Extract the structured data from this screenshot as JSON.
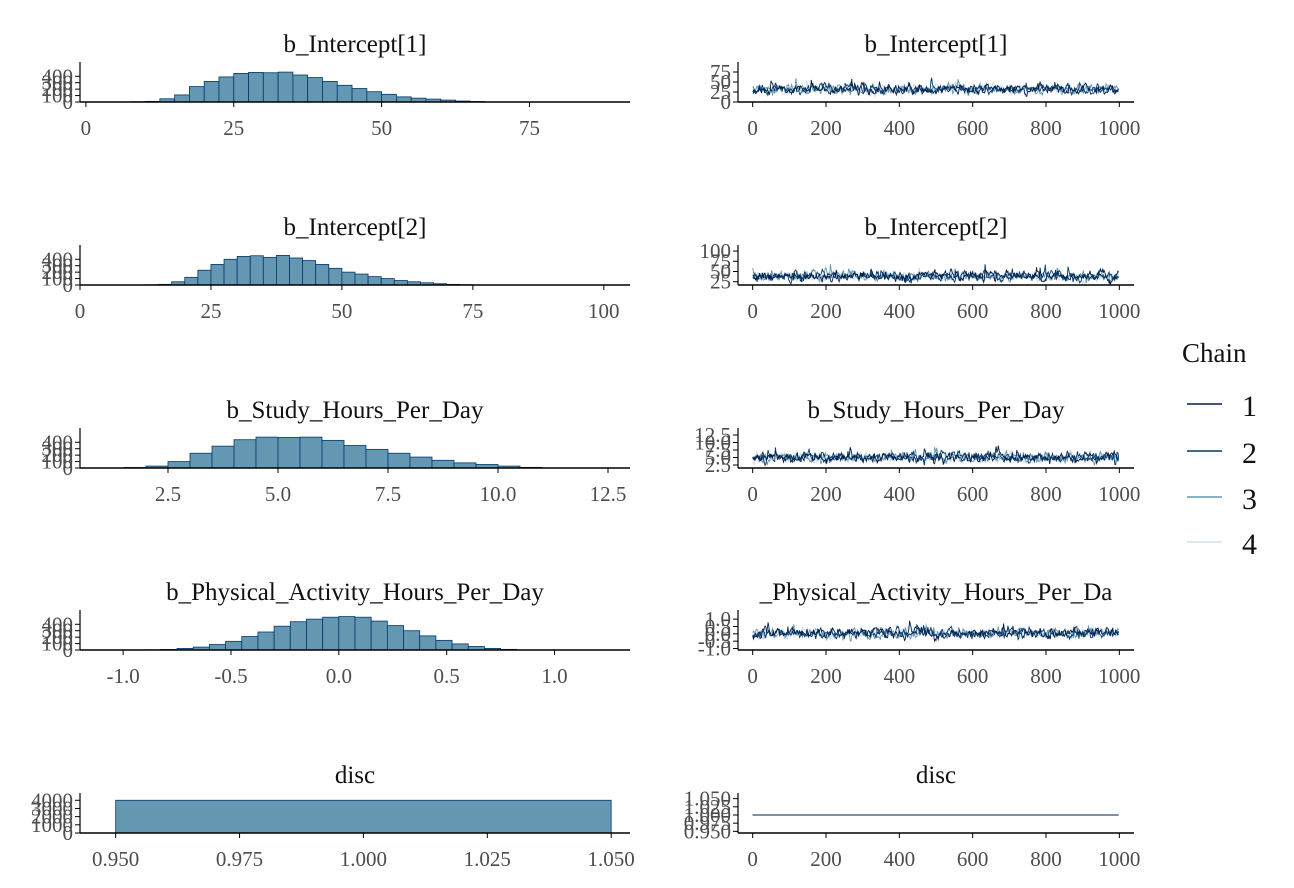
{
  "colors": {
    "hist_fill": "#6497b1",
    "hist_stroke": "#03396c",
    "chain_1": "#011f4b",
    "chain_2": "#03396c",
    "chain_3": "#6497b1",
    "chain_4": "#d1e1ec",
    "axis": "#000000"
  },
  "legend": {
    "title": "Chain",
    "items": [
      {
        "label": "1",
        "color": "#011f4b"
      },
      {
        "label": "2",
        "color": "#03396c"
      },
      {
        "label": "3",
        "color": "#6497b1"
      },
      {
        "label": "4",
        "color": "#d1e1ec"
      }
    ]
  },
  "chart_data": [
    {
      "type": "bar",
      "panel": "histogram",
      "title": "b_Intercept[1]",
      "xlim": [
        -1,
        92
      ],
      "ylim": [
        0,
        560
      ],
      "x_ticks": [
        0,
        25,
        50,
        75
      ],
      "x_tick_labels": [
        "0",
        "25",
        "50",
        "75"
      ],
      "y_ticks": [
        0,
        100,
        200,
        300,
        400
      ],
      "y_tick_labels": [
        "0",
        "100",
        "200",
        "300",
        "400"
      ],
      "bin_width": 2.5,
      "bin_starts": [
        7.5,
        10,
        12.5,
        15,
        17.5,
        20,
        22.5,
        25,
        27.5,
        30,
        32.5,
        35,
        37.5,
        40,
        42.5,
        45,
        47.5,
        50,
        52.5,
        55,
        57.5,
        60,
        62.5,
        65
      ],
      "counts": [
        4,
        10,
        50,
        110,
        240,
        320,
        390,
        445,
        460,
        455,
        465,
        420,
        380,
        320,
        260,
        210,
        160,
        120,
        80,
        60,
        45,
        30,
        15,
        8
      ]
    },
    {
      "type": "line",
      "panel": "trace",
      "title": "b_Intercept[1]",
      "xlim": [
        -40,
        1040
      ],
      "ylim": [
        0,
        90
      ],
      "x_ticks": [
        0,
        200,
        400,
        600,
        800,
        1000
      ],
      "x_tick_labels": [
        "0",
        "200",
        "400",
        "600",
        "800",
        "1000"
      ],
      "y_ticks": [
        0,
        25,
        50,
        75
      ],
      "y_tick_labels": [
        "0",
        "25",
        "50",
        "75"
      ],
      "n_iter": 1000,
      "trace_center": 32,
      "trace_spread": 9,
      "trace_range": [
        8,
        80
      ],
      "series": [
        {
          "name": "1"
        },
        {
          "name": "2"
        },
        {
          "name": "3"
        },
        {
          "name": "4"
        }
      ]
    },
    {
      "type": "bar",
      "panel": "histogram",
      "title": "b_Intercept[2]",
      "xlim": [
        0,
        105
      ],
      "ylim": [
        0,
        560
      ],
      "x_ticks": [
        0,
        25,
        50,
        75,
        100
      ],
      "x_tick_labels": [
        "0",
        "25",
        "50",
        "75",
        "100"
      ],
      "y_ticks": [
        0,
        100,
        200,
        300,
        400
      ],
      "y_tick_labels": [
        "0",
        "100",
        "200",
        "300",
        "400"
      ],
      "bin_width": 2.5,
      "bin_starts": [
        12.5,
        15,
        17.5,
        20,
        22.5,
        25,
        27.5,
        30,
        32.5,
        35,
        37.5,
        40,
        42.5,
        45,
        47.5,
        50,
        52.5,
        55,
        57.5,
        60,
        62.5,
        65,
        67.5,
        70,
        72.5
      ],
      "counts": [
        4,
        10,
        50,
        120,
        230,
        320,
        400,
        445,
        455,
        430,
        460,
        420,
        380,
        320,
        260,
        200,
        170,
        130,
        100,
        70,
        50,
        35,
        20,
        10,
        5
      ]
    },
    {
      "type": "line",
      "panel": "trace",
      "title": "b_Intercept[2]",
      "xlim": [
        -40,
        1040
      ],
      "ylim": [
        17,
        105
      ],
      "x_ticks": [
        0,
        200,
        400,
        600,
        800,
        1000
      ],
      "x_tick_labels": [
        "0",
        "200",
        "400",
        "600",
        "800",
        "1000"
      ],
      "y_ticks": [
        25,
        50,
        75,
        100
      ],
      "y_tick_labels": [
        "25",
        "50",
        "75",
        "100"
      ],
      "n_iter": 1000,
      "trace_center": 38,
      "trace_spread": 9,
      "trace_range": [
        20,
        80
      ],
      "series": [
        {
          "name": "1"
        },
        {
          "name": "2"
        },
        {
          "name": "3"
        },
        {
          "name": "4"
        }
      ]
    },
    {
      "type": "bar",
      "panel": "histogram",
      "title": "b_Study_Hours_Per_Day",
      "xlim": [
        0.5,
        13
      ],
      "ylim": [
        0,
        560
      ],
      "x_ticks": [
        2.5,
        5.0,
        7.5,
        10.0,
        12.5
      ],
      "x_tick_labels": [
        "2.5",
        "5.0",
        "7.5",
        "10.0",
        "12.5"
      ],
      "y_ticks": [
        0,
        100,
        200,
        300,
        400
      ],
      "y_tick_labels": [
        "0",
        "100",
        "200",
        "300",
        "400"
      ],
      "bin_width": 0.5,
      "bin_starts": [
        1.5,
        2.0,
        2.5,
        3.0,
        3.5,
        4.0,
        4.5,
        5.0,
        5.5,
        6.0,
        6.5,
        7.0,
        7.5,
        8.0,
        8.5,
        9.0,
        9.5,
        10.0,
        10.5
      ],
      "counts": [
        8,
        30,
        100,
        230,
        340,
        440,
        480,
        475,
        480,
        430,
        350,
        290,
        230,
        170,
        120,
        80,
        55,
        30,
        10
      ]
    },
    {
      "type": "line",
      "panel": "trace",
      "title": "b_Study_Hours_Per_Day",
      "xlim": [
        -40,
        1040
      ],
      "ylim": [
        1.5,
        13.5
      ],
      "x_ticks": [
        0,
        200,
        400,
        600,
        800,
        1000
      ],
      "x_tick_labels": [
        "0",
        "200",
        "400",
        "600",
        "800",
        "1000"
      ],
      "y_ticks": [
        2.5,
        5.0,
        7.5,
        10.0,
        12.5
      ],
      "y_tick_labels": [
        "2.5",
        "5.0",
        "7.5",
        "10.0",
        "12.5"
      ],
      "n_iter": 1000,
      "trace_center": 5.0,
      "trace_spread": 1.3,
      "trace_range": [
        2.2,
        11.5
      ],
      "series": [
        {
          "name": "1"
        },
        {
          "name": "2"
        },
        {
          "name": "3"
        },
        {
          "name": "4"
        }
      ]
    },
    {
      "type": "bar",
      "panel": "histogram",
      "title": "b_Physical_Activity_Hours_Per_Day",
      "xlim": [
        -1.2,
        1.35
      ],
      "ylim": [
        0,
        560
      ],
      "x_ticks": [
        -1.0,
        -0.5,
        0.0,
        0.5,
        1.0
      ],
      "x_tick_labels": [
        "-1.0",
        "-0.5",
        "0.0",
        "0.5",
        "1.0"
      ],
      "y_ticks": [
        0,
        100,
        200,
        300,
        400
      ],
      "y_tick_labels": [
        "0",
        "100",
        "200",
        "300",
        "400"
      ],
      "bin_width": 0.075,
      "bin_starts": [
        -0.9,
        -0.825,
        -0.75,
        -0.675,
        -0.6,
        -0.525,
        -0.45,
        -0.375,
        -0.3,
        -0.225,
        -0.15,
        -0.075,
        0.0,
        0.075,
        0.15,
        0.225,
        0.3,
        0.375,
        0.45,
        0.525,
        0.6,
        0.675,
        0.75
      ],
      "counts": [
        3,
        8,
        25,
        45,
        85,
        135,
        210,
        280,
        370,
        440,
        480,
        510,
        520,
        510,
        450,
        380,
        300,
        220,
        150,
        95,
        55,
        25,
        10
      ]
    },
    {
      "type": "line",
      "panel": "trace",
      "title": "_Physical_Activity_Hours_Per_Da",
      "xlim": [
        -40,
        1040
      ],
      "ylim": [
        -1.1,
        1.35
      ],
      "x_ticks": [
        0,
        200,
        400,
        600,
        800,
        1000
      ],
      "x_tick_labels": [
        "0",
        "200",
        "400",
        "600",
        "800",
        "1000"
      ],
      "y_ticks": [
        -1.0,
        -0.5,
        0.0,
        0.5,
        1.0
      ],
      "y_tick_labels": [
        "-1.0",
        "-0.5",
        "0.0",
        "0.5",
        "1.0"
      ],
      "n_iter": 1000,
      "trace_center": 0.05,
      "trace_spread": 0.25,
      "trace_range": [
        -0.75,
        0.9
      ],
      "series": [
        {
          "name": "1"
        },
        {
          "name": "2"
        },
        {
          "name": "3"
        },
        {
          "name": "4"
        }
      ]
    },
    {
      "type": "bar",
      "panel": "histogram",
      "title": "disc",
      "xlim": [
        0.9428,
        1.0538
      ],
      "ylim": [
        0,
        4400
      ],
      "x_ticks": [
        0.95,
        0.975,
        1.0,
        1.025,
        1.05
      ],
      "x_tick_labels": [
        "0.950",
        "0.975",
        "1.000",
        "1.025",
        "1.050"
      ],
      "y_ticks": [
        0,
        1000,
        2000,
        3000,
        4000
      ],
      "y_tick_labels": [
        "0",
        "1000",
        "2000",
        "3000",
        "4000"
      ],
      "bin_width": 0.1,
      "bin_starts": [
        0.95
      ],
      "counts": [
        4000
      ]
    },
    {
      "type": "line",
      "panel": "trace",
      "title": "disc",
      "xlim": [
        -40,
        1040
      ],
      "ylim": [
        0.945,
        1.055
      ],
      "x_ticks": [
        0,
        200,
        400,
        600,
        800,
        1000
      ],
      "x_tick_labels": [
        "0",
        "200",
        "400",
        "600",
        "800",
        "1000"
      ],
      "y_ticks": [
        0.95,
        0.975,
        1.0,
        1.025,
        1.05
      ],
      "y_tick_labels": [
        "0.950",
        "0.975",
        "1.000",
        "1.025",
        "1.050"
      ],
      "n_iter": 1000,
      "trace_center": 1.0,
      "trace_spread": 0,
      "trace_range": [
        1.0,
        1.0
      ],
      "series": [
        {
          "name": "1"
        },
        {
          "name": "2"
        },
        {
          "name": "3"
        },
        {
          "name": "4"
        }
      ]
    }
  ]
}
